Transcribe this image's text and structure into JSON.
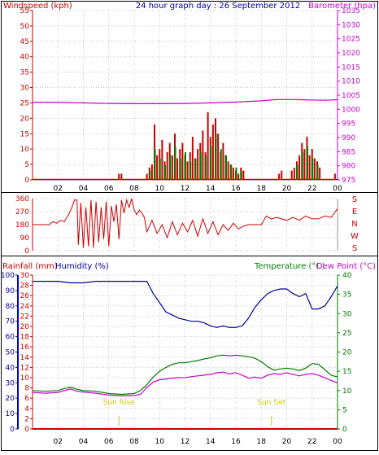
{
  "colors": {
    "wind": "#cc0000",
    "gust": "#008000",
    "wind_avg": "#0000cc",
    "baro": "#cc00cc",
    "dir": "#cc0000",
    "rain": "#cc0000",
    "humidity": "#000099",
    "temperature": "#007a00",
    "dewpoint": "#cc00cc",
    "sun": "#cccc00",
    "grid": "#c8c8c8",
    "title": "#0000aa"
  },
  "chart_data": [
    {
      "type": "bar",
      "title": "24 hour graph day : 26 September 2012",
      "ylabel_left": "Windspeed (kph)",
      "ylabel_right": "Barometer (hpa)",
      "x_tick_labels": [
        "02",
        "04",
        "06",
        "08",
        "10",
        "12",
        "14",
        "16",
        "18",
        "20",
        "22",
        "00"
      ],
      "xlim_hours": [
        0,
        24
      ],
      "ylim_left": [
        0,
        55
      ],
      "ylim_right": [
        975,
        1035
      ],
      "left_ticks": [
        "0",
        "5",
        "10",
        "15",
        "20",
        "25",
        "30",
        "35",
        "40",
        "45",
        "50",
        "55"
      ],
      "right_ticks": [
        "975",
        "980",
        "985",
        "990",
        "995",
        "1000",
        "1005",
        "1010",
        "1015",
        "1020",
        "1025",
        "1030",
        "1035"
      ],
      "grid": true,
      "series": [
        {
          "name": "Windspeed (kph)",
          "x": [
            6.8,
            7.0,
            9.0,
            9.2,
            9.4,
            9.6,
            9.8,
            10.0,
            10.2,
            10.4,
            10.6,
            10.8,
            11.0,
            11.2,
            11.4,
            11.6,
            11.8,
            12.0,
            12.2,
            12.4,
            12.6,
            12.8,
            13.0,
            13.2,
            13.4,
            13.6,
            13.8,
            14.0,
            14.2,
            14.4,
            14.6,
            14.8,
            15.0,
            15.2,
            15.4,
            15.6,
            15.8,
            16.0,
            16.2,
            16.4,
            16.6,
            19.4,
            19.6,
            20.4,
            20.6,
            20.8,
            21.0,
            21.2,
            21.4,
            21.6,
            21.8,
            22.0,
            22.2,
            22.4,
            22.6,
            23.8
          ],
          "values": [
            2,
            2,
            2,
            4,
            5,
            18,
            8,
            10,
            13,
            6,
            9,
            12,
            8,
            15,
            7,
            10,
            12,
            8,
            6,
            9,
            14,
            7,
            10,
            12,
            16,
            9,
            22,
            14,
            18,
            20,
            15,
            9,
            12,
            8,
            6,
            5,
            4,
            3,
            2,
            4,
            3,
            2,
            3,
            3,
            4,
            6,
            8,
            12,
            10,
            14,
            8,
            10,
            7,
            6,
            4,
            2
          ]
        },
        {
          "name": "Wind gust (kph)",
          "x": [
            9.2,
            9.6,
            10.0,
            10.4,
            10.8,
            11.2,
            11.6,
            12.0,
            12.4,
            12.8,
            13.2,
            13.6,
            14.0,
            14.4,
            14.8,
            15.2,
            15.6,
            16.0,
            16.4,
            20.8,
            21.2,
            21.6,
            22.0,
            22.4
          ],
          "values": [
            3,
            10,
            7,
            5,
            8,
            11,
            7,
            9,
            6,
            7,
            9,
            8,
            11,
            15,
            10,
            8,
            5,
            4,
            3,
            5,
            9,
            11,
            7,
            5
          ]
        },
        {
          "name": "Barometer (hpa)",
          "x": [
            0,
            2,
            4,
            6,
            8,
            10,
            12,
            14,
            16,
            18,
            19,
            20,
            21,
            22,
            23,
            24
          ],
          "values": [
            1002.5,
            1002.5,
            1002.3,
            1002.1,
            1002.0,
            1002.0,
            1002.1,
            1002.3,
            1002.6,
            1003.0,
            1003.4,
            1003.5,
            1003.4,
            1003.3,
            1003.2,
            1003.4
          ]
        }
      ]
    },
    {
      "type": "line",
      "ylim": [
        0,
        360
      ],
      "left_ticks": [
        "0",
        "90",
        "180",
        "270",
        "360"
      ],
      "right_labels": [
        "S",
        "E",
        "N",
        "W",
        "S"
      ],
      "x_tick_labels": [
        "02",
        "04",
        "06",
        "08",
        "10",
        "12",
        "14",
        "16",
        "18",
        "20",
        "22",
        "00"
      ],
      "xlim_hours": [
        0,
        24
      ],
      "grid": true,
      "series": [
        {
          "name": "Wind direction",
          "x": [
            0,
            1.3,
            1.6,
            1.9,
            2.2,
            2.5,
            2.9,
            3.1,
            3.3,
            3.5,
            3.6,
            3.8,
            4.0,
            4.2,
            4.4,
            4.6,
            4.8,
            5.0,
            5.2,
            5.4,
            5.6,
            5.8,
            6.0,
            6.2,
            6.4,
            6.6,
            6.8,
            7.0,
            7.2,
            7.4,
            7.6,
            7.8,
            8.0,
            8.2,
            8.4,
            8.6,
            8.8,
            9.0,
            9.4,
            9.8,
            10.2,
            10.6,
            11.0,
            11.4,
            11.8,
            12.2,
            12.6,
            13.0,
            13.4,
            13.8,
            14.2,
            14.6,
            15.0,
            15.4,
            15.8,
            16.2,
            16.6,
            17.0,
            17.5,
            18.0,
            18.4,
            18.8,
            19.2,
            19.6,
            20.0,
            20.5,
            21.0,
            21.5,
            22.0,
            22.5,
            23.0,
            23.5,
            24.0
          ],
          "values": [
            180,
            180,
            200,
            190,
            210,
            200,
            260,
            300,
            350,
            350,
            40,
            330,
            20,
            300,
            30,
            350,
            20,
            340,
            60,
            300,
            80,
            340,
            30,
            310,
            200,
            320,
            80,
            350,
            260,
            350,
            300,
            360,
            280,
            250,
            280,
            260,
            230,
            130,
            210,
            120,
            180,
            90,
            200,
            110,
            190,
            130,
            210,
            100,
            220,
            120,
            200,
            110,
            180,
            140,
            190,
            150,
            170,
            180,
            180,
            180,
            240,
            220,
            230,
            220,
            210,
            230,
            210,
            240,
            220,
            220,
            240,
            230,
            290
          ]
        },
        {
          "name": "Average direction",
          "x": [
            0,
            1.5,
            3.0,
            4.0,
            5.0,
            6.0,
            7.5,
            9.0,
            10.0,
            12.0,
            14.0,
            16.0,
            17.0,
            18.0,
            19.0,
            20.0,
            22.0,
            24.0
          ],
          "values": [
            180,
            195,
            230,
            250,
            220,
            200,
            240,
            220,
            170,
            160,
            160,
            165,
            175,
            180,
            215,
            225,
            230,
            260
          ]
        }
      ]
    },
    {
      "type": "line",
      "ylabel_left": "Rainfall (mm)",
      "ylabel_left2": "Humidity (%)",
      "ylabel_right": "Temperature (°C)",
      "ylabel_right2": "Dew Point (°C)",
      "x_tick_labels": [
        "02",
        "04",
        "06",
        "08",
        "10",
        "12",
        "14",
        "16",
        "18",
        "20",
        "22",
        "00"
      ],
      "xlim_hours": [
        0,
        24
      ],
      "rain_ticks": [
        "0",
        "2",
        "4",
        "6",
        "8",
        "10",
        "12",
        "14",
        "16",
        "18",
        "20",
        "22",
        "24",
        "26",
        "28",
        "30"
      ],
      "humidity_ticks": [
        "0",
        "10",
        "20",
        "30",
        "40",
        "50",
        "60",
        "70",
        "80",
        "90",
        "100"
      ],
      "temp_ticks": [
        "0",
        "5",
        "10",
        "15",
        "20",
        "25",
        "30",
        "35",
        "40"
      ],
      "ylim_rain": [
        0,
        30
      ],
      "ylim_humidity": [
        0,
        100
      ],
      "ylim_temp": [
        0,
        40
      ],
      "grid": true,
      "annotations": [
        {
          "text": "Sun Rise",
          "x": 6.8
        },
        {
          "text": "Sun Set",
          "x": 18.8
        }
      ],
      "series": [
        {
          "name": "Humidity (%)",
          "x": [
            0,
            2,
            3,
            4,
            5,
            6,
            7,
            8,
            9,
            9.5,
            10,
            10.5,
            11,
            11.5,
            12,
            12.5,
            13,
            13.5,
            14,
            14.5,
            15,
            15.5,
            16,
            16.5,
            17,
            17.5,
            18,
            18.5,
            19,
            19.5,
            20,
            20.5,
            21,
            21.5,
            22,
            22.5,
            23,
            23.5,
            24
          ],
          "values": [
            96,
            96,
            95,
            95,
            96,
            96,
            96,
            96,
            96,
            88,
            82,
            76,
            74,
            72,
            71,
            70,
            70,
            69,
            67,
            66,
            67,
            66,
            66,
            67,
            72,
            79,
            84,
            88,
            90,
            91,
            91,
            88,
            86,
            88,
            78,
            78,
            80,
            86,
            93
          ]
        },
        {
          "name": "Temperature (°C)",
          "x": [
            0,
            1,
            2,
            2.5,
            3,
            3.5,
            4,
            5,
            6,
            7,
            8,
            8.5,
            9,
            9.5,
            10,
            10.5,
            11,
            11.5,
            12,
            12.5,
            13,
            13.5,
            14,
            14.5,
            15,
            15.5,
            16,
            16.5,
            17,
            17.5,
            18,
            18.5,
            19,
            19.5,
            20,
            20.5,
            21,
            21.5,
            22,
            22.5,
            23,
            23.5,
            24
          ],
          "values": [
            10.0,
            9.8,
            10.0,
            10.5,
            10.9,
            10.3,
            10.0,
            9.8,
            9.2,
            9.0,
            9.2,
            10.0,
            11.5,
            13.5,
            15.0,
            16.0,
            16.8,
            17.2,
            17.2,
            17.5,
            17.8,
            18.2,
            18.5,
            19.0,
            19.2,
            19.0,
            19.2,
            19.0,
            18.8,
            18.4,
            17.5,
            16.2,
            15.3,
            15.6,
            15.8,
            15.6,
            15.2,
            15.8,
            17.0,
            16.8,
            15.4,
            14.0,
            13.5
          ]
        },
        {
          "name": "Dew Point (°C)",
          "x": [
            0,
            1,
            2,
            2.5,
            3,
            3.5,
            4,
            5,
            6,
            7,
            8,
            8.5,
            9,
            9.5,
            10,
            10.5,
            11,
            11.5,
            12,
            12.5,
            13,
            13.5,
            14,
            14.5,
            15,
            15.5,
            16,
            16.5,
            17,
            17.5,
            18,
            18.5,
            19,
            19.5,
            20,
            20.5,
            21,
            21.5,
            22,
            22.5,
            23,
            23.5,
            24
          ],
          "values": [
            9.5,
            9.3,
            9.5,
            10.0,
            10.4,
            9.8,
            9.6,
            9.3,
            8.8,
            8.6,
            8.7,
            9.0,
            10.8,
            12.2,
            12.8,
            13.0,
            13.2,
            13.4,
            13.3,
            13.6,
            13.8,
            14.0,
            14.2,
            14.6,
            14.8,
            14.3,
            14.6,
            14.0,
            13.2,
            13.5,
            13.2,
            14.0,
            14.4,
            14.2,
            14.6,
            14.2,
            13.8,
            14.2,
            14.4,
            14.0,
            13.3,
            12.6,
            12.0
          ]
        },
        {
          "name": "Rainfall (mm)",
          "x": [
            0,
            24
          ],
          "values": [
            0,
            0
          ]
        }
      ]
    }
  ]
}
